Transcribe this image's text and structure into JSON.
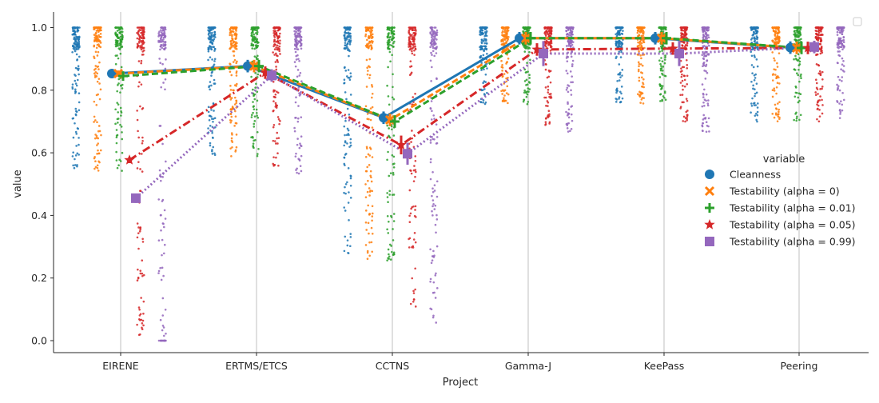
{
  "chart_data": {
    "type": "line",
    "xlabel": "Project",
    "ylabel": "value",
    "categories": [
      "EIRENE",
      "ERTMS/ETCS",
      "CCTNS",
      "Gamma-J",
      "KeePass",
      "Peering"
    ],
    "yticks": [
      "0.0",
      "0.2",
      "0.4",
      "0.6",
      "0.8",
      "1.0"
    ],
    "ylim": [
      -0.04,
      1.05
    ],
    "grid": "vertical",
    "legend": {
      "title": "variable",
      "placement": "right"
    },
    "series": [
      {
        "name": "Cleanness",
        "color": "#1f77b4",
        "marker": "circle",
        "linestyle": "solid",
        "values": [
          0.853,
          0.877,
          0.712,
          0.966,
          0.966,
          0.936
        ]
      },
      {
        "name": "Testability (alpha = 0)",
        "color": "#ff7f0e",
        "marker": "x",
        "linestyle": "dashed",
        "values": [
          0.853,
          0.877,
          0.705,
          0.966,
          0.966,
          0.935
        ]
      },
      {
        "name": "Testability (alpha = 0.01)",
        "color": "#2ca02c",
        "marker": "plus",
        "linestyle": "dashed",
        "values": [
          0.845,
          0.877,
          0.7,
          0.966,
          0.966,
          0.935
        ]
      },
      {
        "name": "Testability (alpha = 0.05)",
        "color": "#d62728",
        "marker": "star",
        "linestyle": "dashdot",
        "values": [
          0.577,
          0.856,
          0.625,
          0.93,
          0.933,
          0.935
        ]
      },
      {
        "name": "Testability (alpha = 0.99)",
        "color": "#9467bd",
        "marker": "square",
        "linestyle": "dotted",
        "values": [
          0.455,
          0.847,
          0.597,
          0.917,
          0.917,
          0.938
        ]
      }
    ],
    "error_bars": [
      [
        0.01,
        0.02,
        0.02,
        0.02,
        0.02,
        0.02
      ],
      [
        0.01,
        0.02,
        0.02,
        0.02,
        0.02,
        0.02
      ],
      [
        0.01,
        0.02,
        0.02,
        0.02,
        0.02,
        0.02
      ],
      [
        0.01,
        0.02,
        0.03,
        0.02,
        0.02,
        0.02
      ],
      [
        0.015,
        0.02,
        0.035,
        0.04,
        0.04,
        0.02
      ]
    ]
  }
}
